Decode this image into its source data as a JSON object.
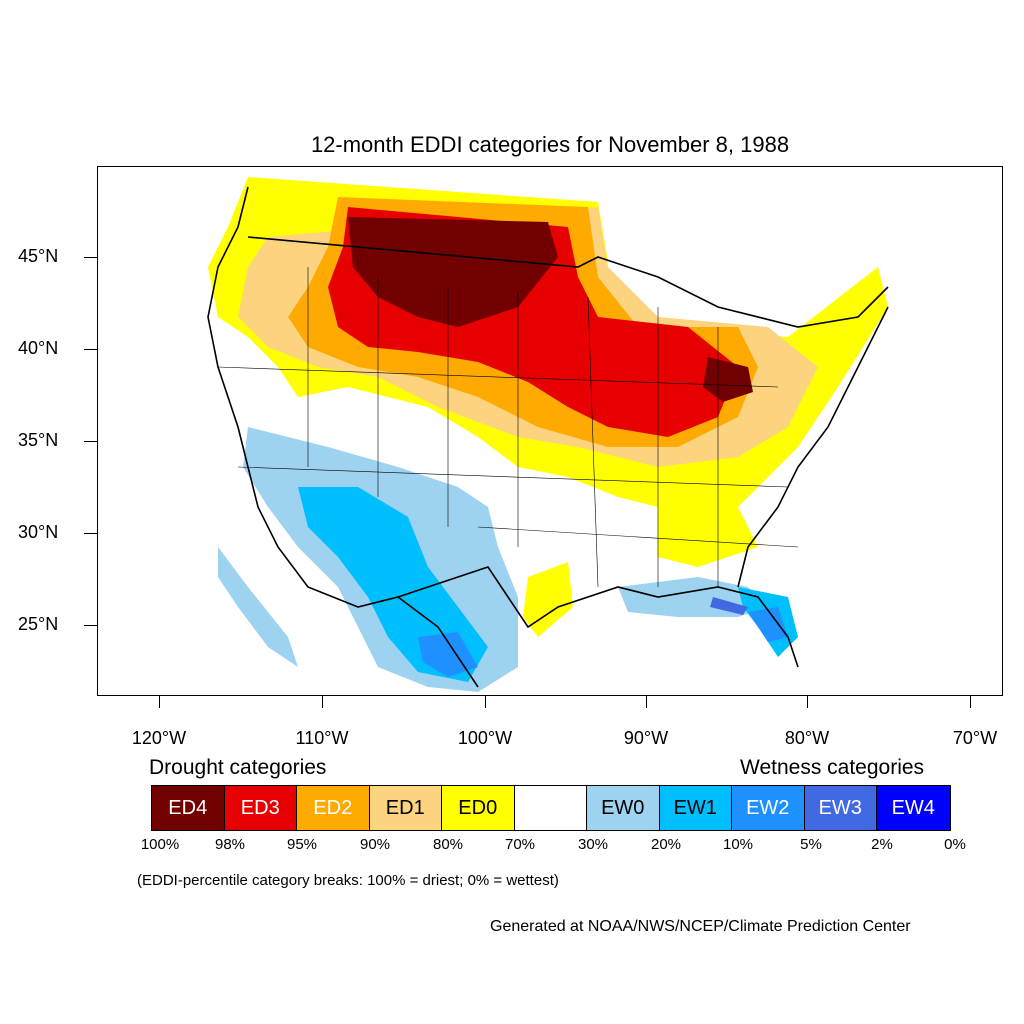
{
  "title": "12-month EDDI categories for November 8, 1988",
  "lat_labels": [
    "45°N",
    "40°N",
    "35°N",
    "30°N",
    "25°N"
  ],
  "lon_labels": [
    "120°W",
    "110°W",
    "100°W",
    "90°W",
    "80°W",
    "70°W"
  ],
  "drought_heading": "Drought categories",
  "wetness_heading": "Wetness categories",
  "legend": [
    {
      "label": "ED4",
      "color": "#730000",
      "text_color": "#ffffff"
    },
    {
      "label": "ED3",
      "color": "#e60000",
      "text_color": "#ffffff"
    },
    {
      "label": "ED2",
      "color": "#ffaa00",
      "text_color": "#ffffff"
    },
    {
      "label": "ED1",
      "color": "#fcd37f",
      "text_color": "#000000"
    },
    {
      "label": "ED0",
      "color": "#ffff00",
      "text_color": "#000000"
    },
    {
      "label": "",
      "color": "#ffffff",
      "text_color": "#000000"
    },
    {
      "label": "EW0",
      "color": "#9dd2f0",
      "text_color": "#000000"
    },
    {
      "label": "EW1",
      "color": "#00bfff",
      "text_color": "#000000"
    },
    {
      "label": "EW2",
      "color": "#1e90ff",
      "text_color": "#ffffff"
    },
    {
      "label": "EW3",
      "color": "#4169e1",
      "text_color": "#ffffff"
    },
    {
      "label": "EW4",
      "color": "#0000ff",
      "text_color": "#ffffff"
    }
  ],
  "percent_breaks": [
    "100%",
    "98%",
    "95%",
    "90%",
    "80%",
    "70%",
    "30%",
    "20%",
    "10%",
    "5%",
    "2%",
    "0%"
  ],
  "note": "(EDDI-percentile category breaks: 100% = driest; 0% = wettest)",
  "credit": "Generated at NOAA/NWS/NCEP/Climate Prediction Center"
}
